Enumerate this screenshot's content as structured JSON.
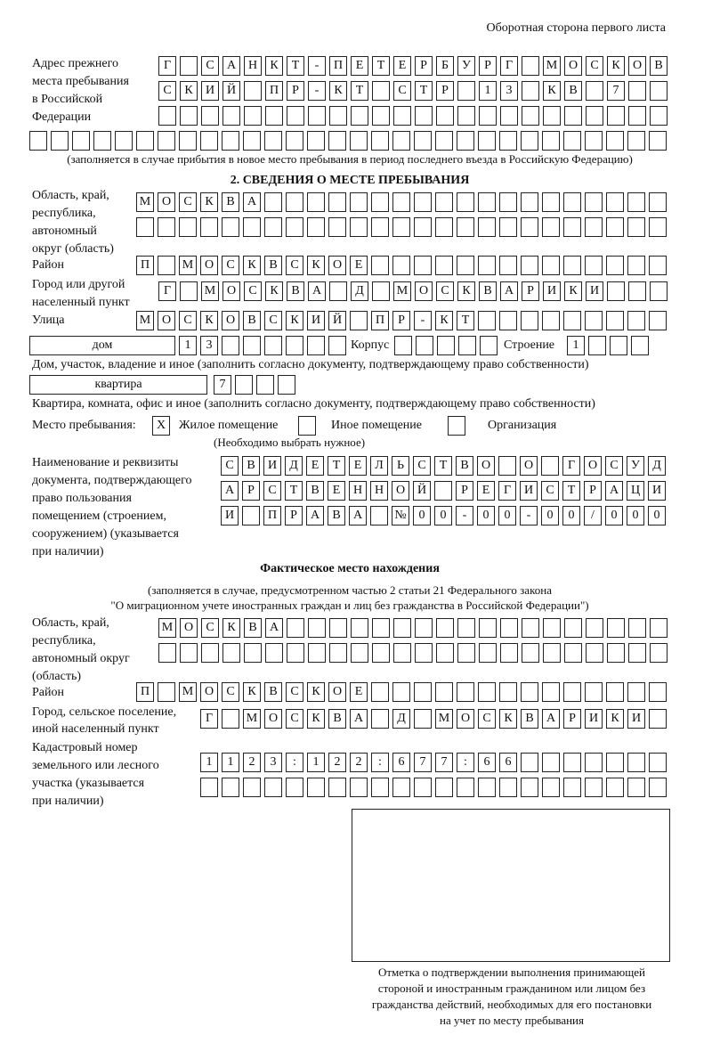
{
  "header": {
    "page_side": "Оборотная сторона первого листа"
  },
  "prev_address": {
    "label": [
      "Адрес прежнего",
      "места пребывания",
      "в Российской",
      "Федерации"
    ],
    "rows": [
      [
        "Г",
        "",
        "С",
        "А",
        "Н",
        "К",
        "Т",
        "-",
        "П",
        "Е",
        "Т",
        "Е",
        "Р",
        "Б",
        "У",
        "Р",
        "Г",
        "",
        "М",
        "О",
        "С",
        "К",
        "О",
        "В"
      ],
      [
        "С",
        "К",
        "И",
        "Й",
        "",
        "П",
        "Р",
        "-",
        "К",
        "Т",
        "",
        "С",
        "Т",
        "Р",
        "",
        "1",
        "3",
        "",
        "К",
        "В",
        "",
        "7",
        "",
        ""
      ],
      [
        "",
        "",
        "",
        "",
        "",
        "",
        "",
        "",
        "",
        "",
        "",
        "",
        "",
        "",
        "",
        "",
        "",
        "",
        "",
        "",
        "",
        "",
        "",
        ""
      ],
      [
        "",
        "",
        "",
        "",
        "",
        "",
        "",
        "",
        "",
        "",
        "",
        "",
        "",
        "",
        "",
        "",
        "",
        "",
        "",
        "",
        "",
        "",
        "",
        "",
        "",
        "",
        "",
        "",
        "",
        ""
      ]
    ],
    "note": "(заполняется в случае прибытия в новое место пребывания в период последнего въезда в Российскую Федерацию)"
  },
  "section2": {
    "title": "2. СВЕДЕНИЯ О МЕСТЕ ПРЕБЫВАНИЯ",
    "region_label": [
      "Область, край,",
      "республика,",
      "автономный",
      "округ (область)"
    ],
    "region_rows": [
      [
        "М",
        "О",
        "С",
        "К",
        "В",
        "А",
        "",
        "",
        "",
        "",
        "",
        "",
        "",
        "",
        "",
        "",
        "",
        "",
        "",
        "",
        "",
        "",
        "",
        "",
        ""
      ],
      [
        "",
        "",
        "",
        "",
        "",
        "",
        "",
        "",
        "",
        "",
        "",
        "",
        "",
        "",
        "",
        "",
        "",
        "",
        "",
        "",
        "",
        "",
        "",
        "",
        ""
      ]
    ],
    "district_label": "Район",
    "district_row": [
      "П",
      "",
      "М",
      "О",
      "С",
      "К",
      "В",
      "С",
      "К",
      "О",
      "Е",
      "",
      "",
      "",
      "",
      "",
      "",
      "",
      "",
      "",
      "",
      "",
      "",
      "",
      ""
    ],
    "city_label": [
      "Город или другой",
      "населенный пункт"
    ],
    "city_row": [
      "Г",
      "",
      "М",
      "О",
      "С",
      "К",
      "В",
      "А",
      "",
      "Д",
      "",
      "М",
      "О",
      "С",
      "К",
      "В",
      "А",
      "Р",
      "И",
      "К",
      "И",
      "",
      "",
      ""
    ],
    "street_label": "Улица",
    "street_row": [
      "М",
      "О",
      "С",
      "К",
      "О",
      "В",
      "С",
      "К",
      "И",
      "Й",
      "",
      "П",
      "Р",
      "-",
      "К",
      "Т",
      "",
      "",
      "",
      "",
      "",
      "",
      "",
      "",
      ""
    ],
    "house_type": "дом",
    "house_row": [
      "1",
      "3",
      "",
      "",
      "",
      "",
      "",
      ""
    ],
    "building_label": "Корпус",
    "building_row": [
      "",
      "",
      "",
      "",
      ""
    ],
    "structure_label": "Строение",
    "structure_row": [
      "1",
      "",
      "",
      ""
    ],
    "house_note": "Дом, участок, владение и иное (заполнить согласно документу, подтверждающему право собственности)",
    "apt_type": "квартира",
    "apt_row": [
      "7",
      "",
      "",
      ""
    ],
    "apt_note": "Квартира, комната, офис и иное (заполнить согласно документу, подтверждающему право собственности)",
    "stay_label": "Место пребывания:",
    "stay_options": [
      {
        "mark": "X",
        "label": "Жилое помещение"
      },
      {
        "mark": "",
        "label": "Иное помещение"
      },
      {
        "mark": "",
        "label": "Организация"
      }
    ],
    "stay_note": "(Необходимо выбрать нужное)",
    "doc_label": [
      "Наименование и реквизиты",
      "документа, подтверждающего",
      "право пользования",
      "помещением (строением,",
      "сооружением) (указывается",
      "при наличии)"
    ],
    "doc_rows": [
      [
        "С",
        "В",
        "И",
        "Д",
        "Е",
        "Т",
        "Е",
        "Л",
        "Ь",
        "С",
        "Т",
        "В",
        "О",
        "",
        "О",
        "",
        "Г",
        "О",
        "С",
        "У",
        "Д"
      ],
      [
        "А",
        "Р",
        "С",
        "Т",
        "В",
        "Е",
        "Н",
        "Н",
        "О",
        "Й",
        "",
        "Р",
        "Е",
        "Г",
        "И",
        "С",
        "Т",
        "Р",
        "А",
        "Ц",
        "И"
      ],
      [
        "И",
        "",
        "П",
        "Р",
        "А",
        "В",
        "А",
        "",
        "№",
        "0",
        "0",
        "-",
        "0",
        "0",
        "-",
        "0",
        "0",
        "/",
        "0",
        "0",
        "0"
      ]
    ]
  },
  "actual": {
    "title": "Фактическое место нахождения",
    "note": [
      "(заполняется в случае, предусмотренном частью 2 статьи 21 Федерального закона",
      "\"О миграционном учете иностранных граждан и лиц без гражданства в Российской Федерации\")"
    ],
    "region_label": [
      "Область, край,",
      "республика,",
      "автономный округ",
      "(область)"
    ],
    "region_rows": [
      [
        "М",
        "О",
        "С",
        "К",
        "В",
        "А",
        "",
        "",
        "",
        "",
        "",
        "",
        "",
        "",
        "",
        "",
        "",
        "",
        "",
        "",
        "",
        "",
        "",
        ""
      ],
      [
        "",
        "",
        "",
        "",
        "",
        "",
        "",
        "",
        "",
        "",
        "",
        "",
        "",
        "",
        "",
        "",
        "",
        "",
        "",
        "",
        "",
        "",
        "",
        ""
      ]
    ],
    "district_label": "Район",
    "district_row": [
      "П",
      "",
      "М",
      "О",
      "С",
      "К",
      "В",
      "С",
      "К",
      "О",
      "Е",
      "",
      "",
      "",
      "",
      "",
      "",
      "",
      "",
      "",
      "",
      "",
      "",
      "",
      ""
    ],
    "city_label": [
      "Город, сельское поселение,",
      "иной населенный пункт"
    ],
    "city_row": [
      "Г",
      "",
      "М",
      "О",
      "С",
      "К",
      "В",
      "А",
      "",
      "Д",
      "",
      "М",
      "О",
      "С",
      "К",
      "В",
      "А",
      "Р",
      "И",
      "К",
      "И",
      ""
    ],
    "cadastral_label": [
      "Кадастровый номер",
      "земельного или лесного",
      "участка (указывается",
      "при наличии)"
    ],
    "cadastral_rows": [
      [
        "1",
        "1",
        "2",
        "3",
        ":",
        "1",
        "2",
        "2",
        ":",
        "6",
        "7",
        "7",
        ":",
        "6",
        "6",
        "",
        "",
        "",
        "",
        "",
        "",
        ""
      ],
      [
        "",
        "",
        "",
        "",
        "",
        "",
        "",
        "",
        "",
        "",
        "",
        "",
        "",
        "",
        "",
        "",
        "",
        "",
        "",
        "",
        "",
        ""
      ]
    ]
  },
  "confirmation": {
    "caption": [
      "Отметка о подтверждении выполнения принимающей",
      "стороной и иностранным гражданином или лицом без",
      "гражданства действий, необходимых для его постановки",
      "на учет по месту пребывания"
    ]
  }
}
